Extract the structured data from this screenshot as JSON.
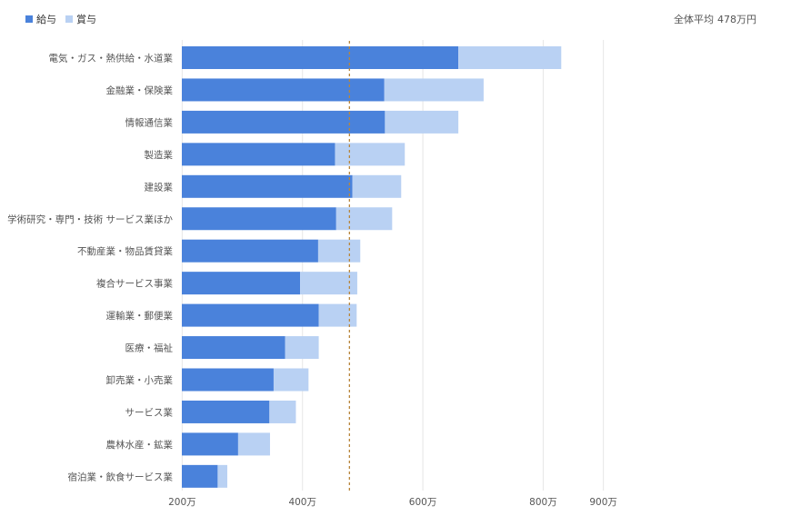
{
  "legend": {
    "salary_label": "給与",
    "bonus_label": "賞与"
  },
  "average": {
    "label": "全体平均",
    "value_text": "478万円",
    "value": 478
  },
  "colors": {
    "salary": "#4a82db",
    "bonus": "#b9d1f3",
    "average_line": "#b8863b",
    "grid": "#e6e6e6"
  },
  "chart_data": {
    "type": "bar",
    "orientation": "horizontal",
    "stacked": true,
    "categories": [
      "電気・ガス・熱供給・水道業",
      "金融業・保険業",
      "情報通信業",
      "製造業",
      "建設業",
      "学術研究・専門・技術 サービス業ほか",
      "不動産業・物品賃貸業",
      "複合サービス事業",
      "運輸業・郵便業",
      "医療・福祉",
      "卸売業・小売業",
      "サービス業",
      "農林水産・鉱業",
      "宿泊業・飲食サービス業"
    ],
    "series": [
      {
        "name": "給与",
        "values": [
          659,
          536,
          537,
          454,
          483,
          456,
          426,
          396,
          427,
          371,
          352,
          345,
          293,
          259
        ]
      },
      {
        "name": "賞与",
        "values": [
          171,
          165,
          122,
          116,
          81,
          93,
          70,
          95,
          63,
          56,
          58,
          44,
          53,
          16
        ]
      }
    ],
    "xlim": [
      0,
      900
    ],
    "x_ticks": [
      {
        "value": 200,
        "label": "200万"
      },
      {
        "value": 400,
        "label": "400万"
      },
      {
        "value": 600,
        "label": "600万"
      },
      {
        "value": 800,
        "label": "800万"
      },
      {
        "value": 900,
        "label": "900万"
      }
    ],
    "grid": true,
    "legend_position": "top-left"
  }
}
